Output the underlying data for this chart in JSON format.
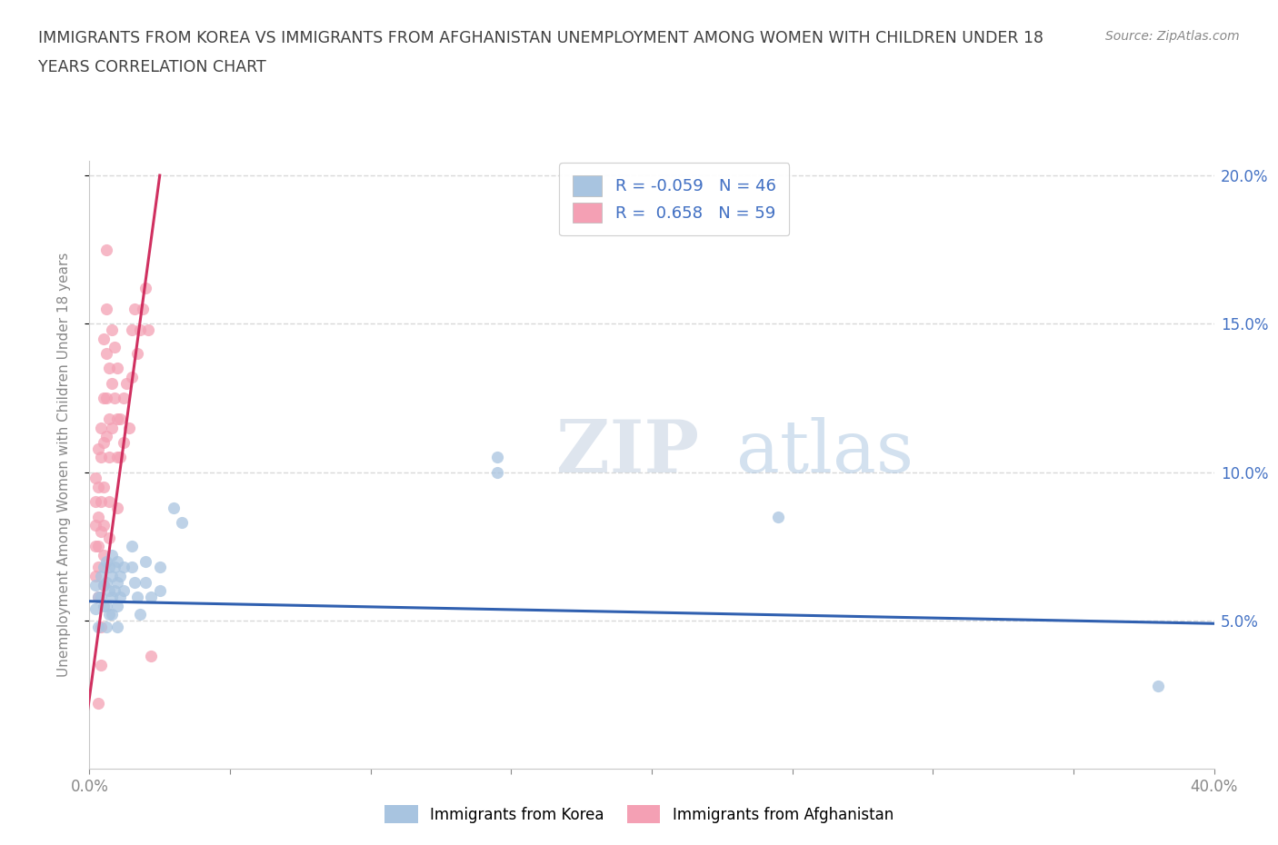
{
  "title_line1": "IMMIGRANTS FROM KOREA VS IMMIGRANTS FROM AFGHANISTAN UNEMPLOYMENT AMONG WOMEN WITH CHILDREN UNDER 18",
  "title_line2": "YEARS CORRELATION CHART",
  "source": "Source: ZipAtlas.com",
  "ylabel": "Unemployment Among Women with Children Under 18 years",
  "xlim": [
    0.0,
    0.4
  ],
  "ylim": [
    0.0,
    0.205
  ],
  "xticks": [
    0.0,
    0.05,
    0.1,
    0.15,
    0.2,
    0.25,
    0.3,
    0.35,
    0.4
  ],
  "xtick_labels": [
    "0.0%",
    "",
    "",
    "",
    "",
    "",
    "",
    "",
    "40.0%"
  ],
  "ytick_positions": [
    0.05,
    0.1,
    0.15,
    0.2
  ],
  "ytick_labels": [
    "5.0%",
    "10.0%",
    "15.0%",
    "20.0%"
  ],
  "korea_R": "-0.059",
  "korea_N": "46",
  "afghanistan_R": "0.658",
  "afghanistan_N": "59",
  "korea_color": "#a8c4e0",
  "afghanistan_color": "#f4a0b4",
  "korea_line_color": "#3060b0",
  "afghanistan_line_color": "#d03060",
  "legend_label_korea": "Immigrants from Korea",
  "legend_label_afghanistan": "Immigrants from Afghanistan",
  "watermark": "ZIPatlas",
  "background_color": "#ffffff",
  "grid_color": "#d8d8d8",
  "title_color": "#404040",
  "korea_points": [
    [
      0.002,
      0.062
    ],
    [
      0.002,
      0.054
    ],
    [
      0.003,
      0.048
    ],
    [
      0.003,
      0.058
    ],
    [
      0.004,
      0.065
    ],
    [
      0.004,
      0.058
    ],
    [
      0.005,
      0.068
    ],
    [
      0.005,
      0.062
    ],
    [
      0.005,
      0.055
    ],
    [
      0.006,
      0.07
    ],
    [
      0.006,
      0.063
    ],
    [
      0.006,
      0.055
    ],
    [
      0.006,
      0.048
    ],
    [
      0.007,
      0.068
    ],
    [
      0.007,
      0.06
    ],
    [
      0.007,
      0.052
    ],
    [
      0.008,
      0.072
    ],
    [
      0.008,
      0.065
    ],
    [
      0.008,
      0.058
    ],
    [
      0.008,
      0.052
    ],
    [
      0.009,
      0.068
    ],
    [
      0.009,
      0.06
    ],
    [
      0.01,
      0.07
    ],
    [
      0.01,
      0.063
    ],
    [
      0.01,
      0.055
    ],
    [
      0.01,
      0.048
    ],
    [
      0.011,
      0.065
    ],
    [
      0.011,
      0.058
    ],
    [
      0.012,
      0.068
    ],
    [
      0.012,
      0.06
    ],
    [
      0.015,
      0.075
    ],
    [
      0.015,
      0.068
    ],
    [
      0.016,
      0.063
    ],
    [
      0.017,
      0.058
    ],
    [
      0.018,
      0.052
    ],
    [
      0.02,
      0.07
    ],
    [
      0.02,
      0.063
    ],
    [
      0.022,
      0.058
    ],
    [
      0.025,
      0.068
    ],
    [
      0.025,
      0.06
    ],
    [
      0.03,
      0.088
    ],
    [
      0.033,
      0.083
    ],
    [
      0.145,
      0.105
    ],
    [
      0.145,
      0.1
    ],
    [
      0.245,
      0.085
    ],
    [
      0.38,
      0.028
    ]
  ],
  "afghanistan_points": [
    [
      0.002,
      0.065
    ],
    [
      0.002,
      0.075
    ],
    [
      0.002,
      0.082
    ],
    [
      0.002,
      0.09
    ],
    [
      0.002,
      0.098
    ],
    [
      0.003,
      0.108
    ],
    [
      0.003,
      0.095
    ],
    [
      0.003,
      0.085
    ],
    [
      0.003,
      0.075
    ],
    [
      0.003,
      0.068
    ],
    [
      0.003,
      0.058
    ],
    [
      0.004,
      0.115
    ],
    [
      0.004,
      0.105
    ],
    [
      0.004,
      0.09
    ],
    [
      0.004,
      0.08
    ],
    [
      0.004,
      0.048
    ],
    [
      0.004,
      0.035
    ],
    [
      0.005,
      0.145
    ],
    [
      0.005,
      0.125
    ],
    [
      0.005,
      0.11
    ],
    [
      0.005,
      0.095
    ],
    [
      0.005,
      0.082
    ],
    [
      0.005,
      0.072
    ],
    [
      0.005,
      0.062
    ],
    [
      0.006,
      0.175
    ],
    [
      0.006,
      0.155
    ],
    [
      0.006,
      0.14
    ],
    [
      0.006,
      0.125
    ],
    [
      0.006,
      0.112
    ],
    [
      0.007,
      0.135
    ],
    [
      0.007,
      0.118
    ],
    [
      0.007,
      0.105
    ],
    [
      0.007,
      0.09
    ],
    [
      0.007,
      0.078
    ],
    [
      0.008,
      0.148
    ],
    [
      0.008,
      0.13
    ],
    [
      0.008,
      0.115
    ],
    [
      0.009,
      0.142
    ],
    [
      0.009,
      0.125
    ],
    [
      0.01,
      0.135
    ],
    [
      0.01,
      0.118
    ],
    [
      0.01,
      0.105
    ],
    [
      0.01,
      0.088
    ],
    [
      0.011,
      0.118
    ],
    [
      0.011,
      0.105
    ],
    [
      0.012,
      0.125
    ],
    [
      0.012,
      0.11
    ],
    [
      0.013,
      0.13
    ],
    [
      0.014,
      0.115
    ],
    [
      0.015,
      0.148
    ],
    [
      0.015,
      0.132
    ],
    [
      0.016,
      0.155
    ],
    [
      0.017,
      0.14
    ],
    [
      0.018,
      0.148
    ],
    [
      0.019,
      0.155
    ],
    [
      0.02,
      0.162
    ],
    [
      0.021,
      0.148
    ],
    [
      0.022,
      0.038
    ],
    [
      0.003,
      0.022
    ]
  ],
  "korea_trend_x": [
    0.0,
    0.4
  ],
  "korea_trend_y": [
    0.0565,
    0.049
  ],
  "afghanistan_trend_x": [
    -0.002,
    0.025
  ],
  "afghanistan_trend_y": [
    0.01,
    0.2
  ]
}
